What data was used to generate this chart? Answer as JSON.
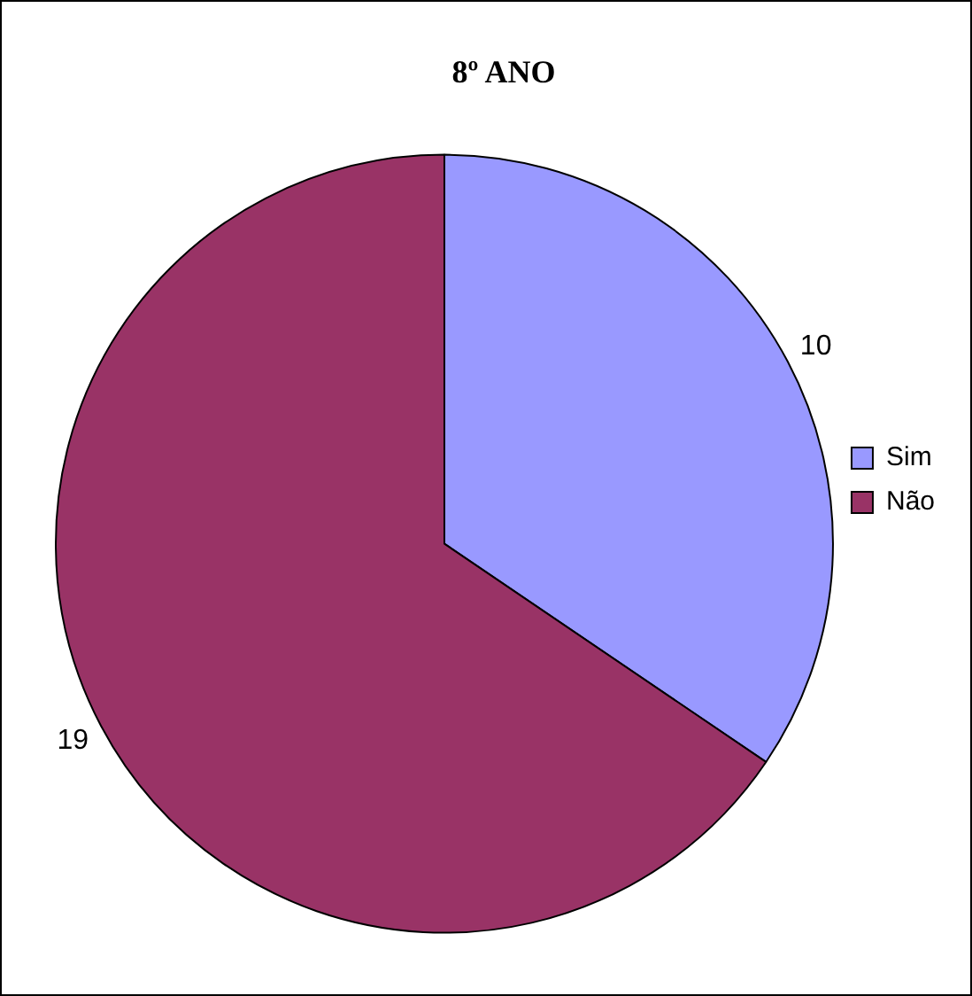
{
  "chart_data": {
    "type": "pie",
    "title": "8º ANO",
    "categories": [
      "Sim",
      "Não"
    ],
    "values": [
      10,
      19
    ],
    "colors": [
      "#9999ff",
      "#993366"
    ],
    "data_labels": true,
    "legend": "right"
  }
}
